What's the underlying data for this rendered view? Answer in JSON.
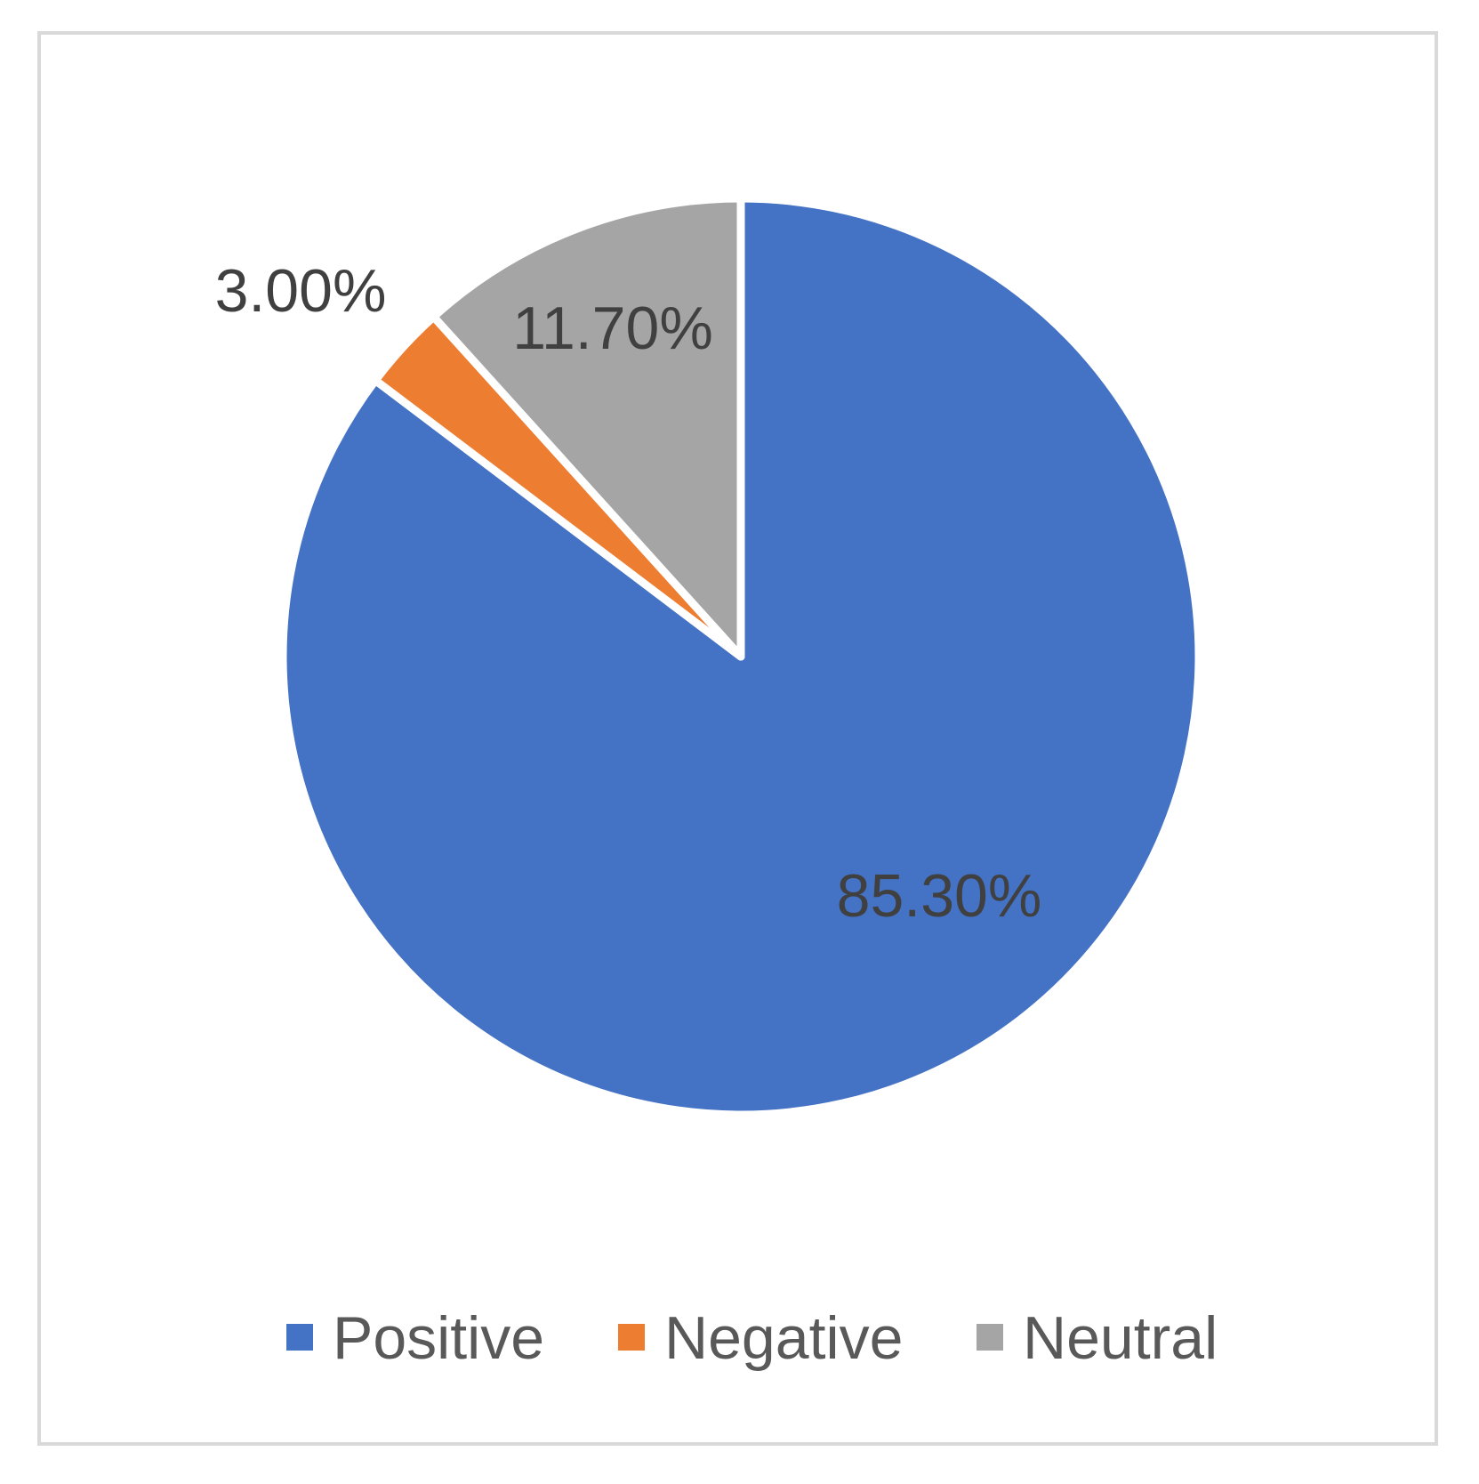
{
  "chart_data": {
    "type": "pie",
    "categories": [
      "Positive",
      "Negative",
      "Neutral"
    ],
    "values": [
      85.3,
      3.0,
      11.7
    ],
    "data_labels": [
      "85.30%",
      "3.00%",
      "11.70%"
    ],
    "colors": [
      "#4472c4",
      "#ed7d31",
      "#a5a5a5"
    ],
    "start_angle_deg": 0,
    "direction": "clockwise",
    "legend": {
      "position": "bottom",
      "entries": [
        "Positive",
        "Negative",
        "Neutral"
      ]
    }
  }
}
